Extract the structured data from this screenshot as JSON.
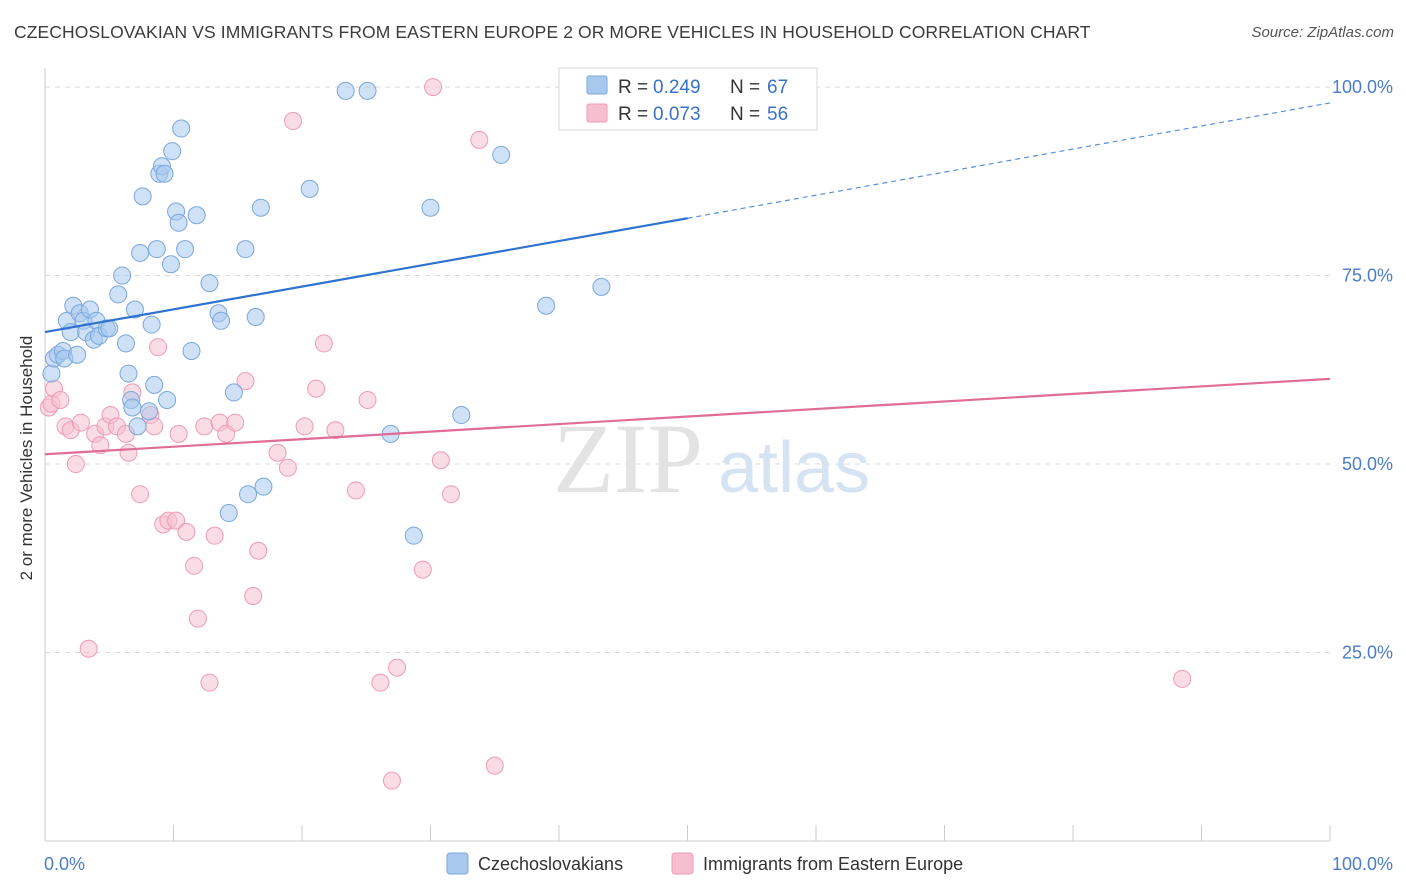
{
  "title": "CZECHOSLOVAKIAN VS IMMIGRANTS FROM EASTERN EUROPE 2 OR MORE VEHICLES IN HOUSEHOLD CORRELATION CHART",
  "source": "Source: ZipAtlas.com",
  "watermark": {
    "zip": "ZIP",
    "atlas": "atlas"
  },
  "colors": {
    "blue_fill": "#a8c8ee",
    "blue_stroke": "#7aa7dd",
    "blue_line": "#2f72d0",
    "pink_fill": "#f6bfd0",
    "pink_stroke": "#ee9bb6",
    "pink_line": "#e06d97",
    "value_text": "#3a72c8",
    "grid": "#d9d9d9"
  },
  "legend": {
    "rows": [
      {
        "r_label": "R = ",
        "r_value": "0.249",
        "n_label": "N = ",
        "n_value": "67",
        "color": "blue"
      },
      {
        "r_label": "R = ",
        "r_value": "0.073",
        "n_label": "N = ",
        "n_value": "56",
        "color": "pink"
      }
    ]
  },
  "chart_data": {
    "type": "scatter",
    "title": "CZECHOSLOVAKIAN VS IMMIGRANTS FROM EASTERN EUROPE 2 OR MORE VEHICLES IN HOUSEHOLD CORRELATION CHART",
    "xlabel": "",
    "ylabel": "2 or more Vehicles in Household",
    "x_tick_labels": [
      "0.0%",
      "100.0%"
    ],
    "y_tick_labels": [
      "25.0%",
      "50.0%",
      "75.0%",
      "100.0%"
    ],
    "y_ticks": [
      25,
      50,
      75,
      100
    ],
    "xlim": [
      0,
      100
    ],
    "ylim": [
      0,
      102
    ],
    "grid": true,
    "legend_position": "top-center",
    "series": [
      {
        "name": "Czechoslovakians",
        "color": "blue",
        "trend": {
          "x0": 0,
          "y0": 67.5,
          "x1": 50,
          "y1": 82.6,
          "dashed_to_x": 100,
          "dashed_to_y": 97.9
        },
        "points": [
          [
            0.5,
            62
          ],
          [
            0.7,
            64
          ],
          [
            1.0,
            64.5
          ],
          [
            1.4,
            65
          ],
          [
            1.5,
            64
          ],
          [
            1.7,
            69
          ],
          [
            2.0,
            67.5
          ],
          [
            2.2,
            71
          ],
          [
            2.5,
            64.5
          ],
          [
            2.7,
            70
          ],
          [
            3.0,
            69
          ],
          [
            3.2,
            67.5
          ],
          [
            3.5,
            70.5
          ],
          [
            3.8,
            66.5
          ],
          [
            4.0,
            69
          ],
          [
            4.2,
            67
          ],
          [
            4.8,
            68
          ],
          [
            5.0,
            68
          ],
          [
            5.7,
            72.5
          ],
          [
            6.0,
            75
          ],
          [
            6.3,
            66
          ],
          [
            6.5,
            62
          ],
          [
            6.7,
            58.5
          ],
          [
            6.8,
            57.5
          ],
          [
            7.0,
            70.5
          ],
          [
            7.2,
            55
          ],
          [
            7.4,
            78
          ],
          [
            7.6,
            85.5
          ],
          [
            8.1,
            57
          ],
          [
            8.3,
            68.5
          ],
          [
            8.5,
            60.5
          ],
          [
            8.7,
            78.5
          ],
          [
            8.9,
            88.5
          ],
          [
            9.1,
            89.5
          ],
          [
            9.3,
            88.5
          ],
          [
            9.5,
            58.5
          ],
          [
            9.8,
            76.5
          ],
          [
            9.9,
            91.5
          ],
          [
            10.2,
            83.5
          ],
          [
            10.4,
            82
          ],
          [
            10.6,
            94.5
          ],
          [
            10.9,
            78.5
          ],
          [
            11.4,
            65
          ],
          [
            11.8,
            83
          ],
          [
            12.8,
            74
          ],
          [
            13.5,
            70
          ],
          [
            13.7,
            69
          ],
          [
            14.3,
            43.5
          ],
          [
            14.7,
            59.5
          ],
          [
            15.6,
            78.5
          ],
          [
            15.8,
            46
          ],
          [
            16.4,
            69.5
          ],
          [
            16.8,
            84
          ],
          [
            17.0,
            47
          ],
          [
            20.6,
            86.5
          ],
          [
            23.4,
            99.5
          ],
          [
            25.1,
            99.5
          ],
          [
            26.9,
            54
          ],
          [
            28.7,
            40.5
          ],
          [
            30.0,
            84
          ],
          [
            32.4,
            56.5
          ],
          [
            35.5,
            91
          ],
          [
            39.0,
            71
          ],
          [
            43.3,
            73.5
          ],
          [
            46.7,
            100
          ],
          [
            48.0,
            100
          ],
          [
            49.5,
            100
          ]
        ]
      },
      {
        "name": "Immigrants from Eastern Europe",
        "color": "pink",
        "trend": {
          "x0": 0,
          "y0": 51.3,
          "x1": 100,
          "y1": 61.3
        },
        "points": [
          [
            0.3,
            57.5
          ],
          [
            0.5,
            58
          ],
          [
            0.7,
            60
          ],
          [
            1.2,
            58.5
          ],
          [
            1.6,
            55
          ],
          [
            2.0,
            54.5
          ],
          [
            2.4,
            50
          ],
          [
            2.8,
            55.5
          ],
          [
            3.4,
            25.5
          ],
          [
            3.9,
            54
          ],
          [
            4.3,
            52.5
          ],
          [
            4.7,
            55
          ],
          [
            5.1,
            56.5
          ],
          [
            5.6,
            55
          ],
          [
            6.3,
            54
          ],
          [
            6.5,
            51.5
          ],
          [
            6.8,
            59.5
          ],
          [
            7.4,
            46
          ],
          [
            8.2,
            56.5
          ],
          [
            8.5,
            55
          ],
          [
            8.8,
            65.5
          ],
          [
            9.2,
            42
          ],
          [
            9.6,
            42.5
          ],
          [
            10.2,
            42.5
          ],
          [
            10.4,
            54
          ],
          [
            11.0,
            41
          ],
          [
            11.6,
            36.5
          ],
          [
            11.9,
            29.5
          ],
          [
            12.4,
            55
          ],
          [
            12.8,
            21
          ],
          [
            13.2,
            40.5
          ],
          [
            13.6,
            55.5
          ],
          [
            14.1,
            54
          ],
          [
            14.8,
            55.5
          ],
          [
            15.6,
            61
          ],
          [
            16.2,
            32.5
          ],
          [
            16.6,
            38.5
          ],
          [
            18.1,
            51.5
          ],
          [
            18.9,
            49.5
          ],
          [
            19.3,
            95.5
          ],
          [
            20.2,
            55
          ],
          [
            21.1,
            60
          ],
          [
            21.7,
            66
          ],
          [
            22.6,
            54.5
          ],
          [
            24.2,
            46.5
          ],
          [
            25.1,
            58.5
          ],
          [
            26.1,
            21
          ],
          [
            27.0,
            8
          ],
          [
            27.4,
            23
          ],
          [
            29.4,
            36
          ],
          [
            30.2,
            100
          ],
          [
            30.8,
            50.5
          ],
          [
            31.6,
            46
          ],
          [
            33.8,
            93
          ],
          [
            35.0,
            10
          ],
          [
            88.5,
            21.5
          ]
        ]
      }
    ]
  },
  "bottom_legend": [
    {
      "label": "Czechoslovakians",
      "color": "blue"
    },
    {
      "label": "Immigrants from Eastern Europe",
      "color": "pink"
    }
  ]
}
